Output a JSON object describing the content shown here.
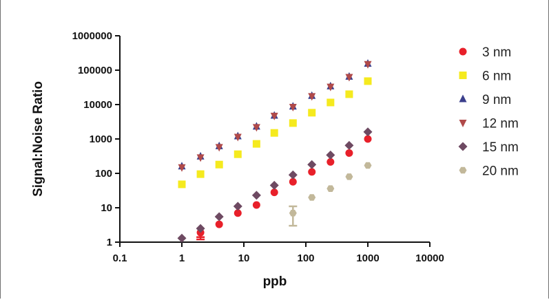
{
  "chart_data": {
    "type": "scatter",
    "title": "",
    "xlabel": "ppb",
    "ylabel": "Signal:Noise Ratio",
    "x_scale": "log",
    "y_scale": "log",
    "xlim": [
      0.1,
      10000
    ],
    "ylim": [
      1,
      1000000
    ],
    "x_ticks": [
      "0.1",
      "1",
      "10",
      "100",
      "1000",
      "10000"
    ],
    "y_ticks": [
      "1",
      "10",
      "100",
      "1000",
      "10000",
      "100000",
      "1000000"
    ],
    "grid": false,
    "legend_position": "right",
    "series": [
      {
        "name": "3 nm",
        "marker": "circle",
        "color": "#e8202a",
        "x": [
          2,
          4,
          8,
          16,
          31,
          62,
          125,
          250,
          500,
          1000
        ],
        "y": [
          1.9,
          3.3,
          7,
          12,
          28,
          57,
          110,
          215,
          390,
          1000
        ],
        "error_bars": [
          {
            "x": 2,
            "low": 1.2,
            "high": 1.4
          }
        ]
      },
      {
        "name": "6 nm",
        "marker": "square",
        "color": "#f5ea1e",
        "x": [
          1,
          2,
          4,
          8,
          16,
          31,
          62,
          125,
          250,
          500,
          1000
        ],
        "y": [
          48,
          95,
          180,
          360,
          720,
          1500,
          2900,
          5800,
          11500,
          20000,
          48000
        ]
      },
      {
        "name": "9 nm",
        "marker": "triangle-up",
        "color": "#3b3f8c",
        "x": [
          1,
          2,
          4,
          8,
          16,
          31,
          62,
          125,
          250,
          500,
          1000
        ],
        "y": [
          160,
          310,
          620,
          1200,
          2300,
          4800,
          8800,
          18000,
          34000,
          65000,
          155000
        ]
      },
      {
        "name": "12 nm",
        "marker": "triangle-down",
        "color": "#b04a4a",
        "x": [
          1,
          2,
          4,
          8,
          16,
          31,
          62,
          125,
          250,
          500,
          1000
        ],
        "y": [
          150,
          290,
          580,
          1150,
          2200,
          4700,
          8500,
          17500,
          33000,
          63000,
          150000
        ]
      },
      {
        "name": "15 nm",
        "marker": "diamond",
        "color": "#6e4a62",
        "x": [
          1,
          2,
          4,
          8,
          16,
          31,
          62,
          125,
          250,
          500,
          1000
        ],
        "y": [
          1.3,
          2.5,
          5.5,
          11,
          23,
          45,
          90,
          180,
          340,
          650,
          1600
        ]
      },
      {
        "name": "20 nm",
        "marker": "hexagon",
        "color": "#c2b89a",
        "x": [
          62,
          125,
          250,
          500,
          1000
        ],
        "y": [
          7,
          20,
          36,
          80,
          170
        ],
        "error_bars": [
          {
            "x": 62,
            "low": 3,
            "high": 11
          }
        ]
      }
    ]
  }
}
